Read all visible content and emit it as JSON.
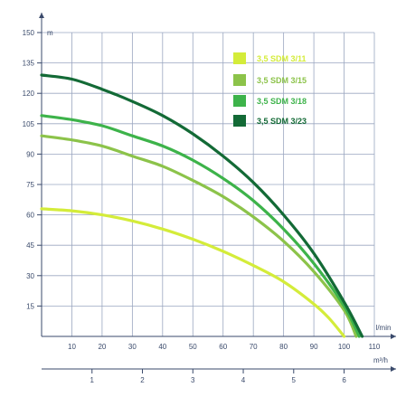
{
  "chart_data": {
    "type": "line",
    "title": "",
    "ylabel": "m",
    "xlabel": "l/min",
    "x2label": "m³/h",
    "ylim": [
      0,
      150
    ],
    "xlim": [
      0,
      110
    ],
    "x2lim": [
      0,
      6.6
    ],
    "grid": true,
    "legend_position": "top-right",
    "yticks": [
      "15",
      "30",
      "45",
      "60",
      "75",
      "90",
      "105",
      "120",
      "135",
      "150"
    ],
    "xticks": [
      "10",
      "20",
      "30",
      "40",
      "50",
      "60",
      "70",
      "80",
      "90",
      "100",
      "110"
    ],
    "x2ticks": [
      "1",
      "2",
      "3",
      "4",
      "5",
      "6"
    ],
    "series": [
      {
        "name": "3,5 SDM 3/11",
        "color": "#d4ec3a",
        "points": [
          [
            0,
            63
          ],
          [
            10,
            62
          ],
          [
            20,
            60
          ],
          [
            30,
            57
          ],
          [
            40,
            53
          ],
          [
            50,
            48
          ],
          [
            60,
            42
          ],
          [
            70,
            35
          ],
          [
            80,
            27
          ],
          [
            90,
            16
          ],
          [
            95,
            9
          ],
          [
            100,
            0
          ]
        ]
      },
      {
        "name": "3,5 SDM 3/15",
        "color": "#8cc34a",
        "points": [
          [
            0,
            99
          ],
          [
            10,
            97
          ],
          [
            20,
            94
          ],
          [
            30,
            89
          ],
          [
            40,
            84
          ],
          [
            50,
            77
          ],
          [
            60,
            69
          ],
          [
            70,
            59
          ],
          [
            80,
            47
          ],
          [
            90,
            32
          ],
          [
            100,
            13
          ],
          [
            104,
            0
          ]
        ]
      },
      {
        "name": "3,5 SDM 3/18",
        "color": "#3db34a",
        "points": [
          [
            0,
            109
          ],
          [
            10,
            107
          ],
          [
            20,
            104
          ],
          [
            30,
            99
          ],
          [
            40,
            94
          ],
          [
            50,
            87
          ],
          [
            60,
            78
          ],
          [
            70,
            67
          ],
          [
            80,
            53
          ],
          [
            90,
            36
          ],
          [
            100,
            15
          ],
          [
            105,
            0
          ]
        ]
      },
      {
        "name": "3,5 SDM 3/23",
        "color": "#136a36",
        "points": [
          [
            0,
            129
          ],
          [
            10,
            127
          ],
          [
            20,
            122
          ],
          [
            30,
            116
          ],
          [
            40,
            109
          ],
          [
            50,
            100
          ],
          [
            60,
            89
          ],
          [
            70,
            76
          ],
          [
            80,
            60
          ],
          [
            90,
            41
          ],
          [
            100,
            17
          ],
          [
            106,
            0
          ]
        ]
      }
    ]
  }
}
